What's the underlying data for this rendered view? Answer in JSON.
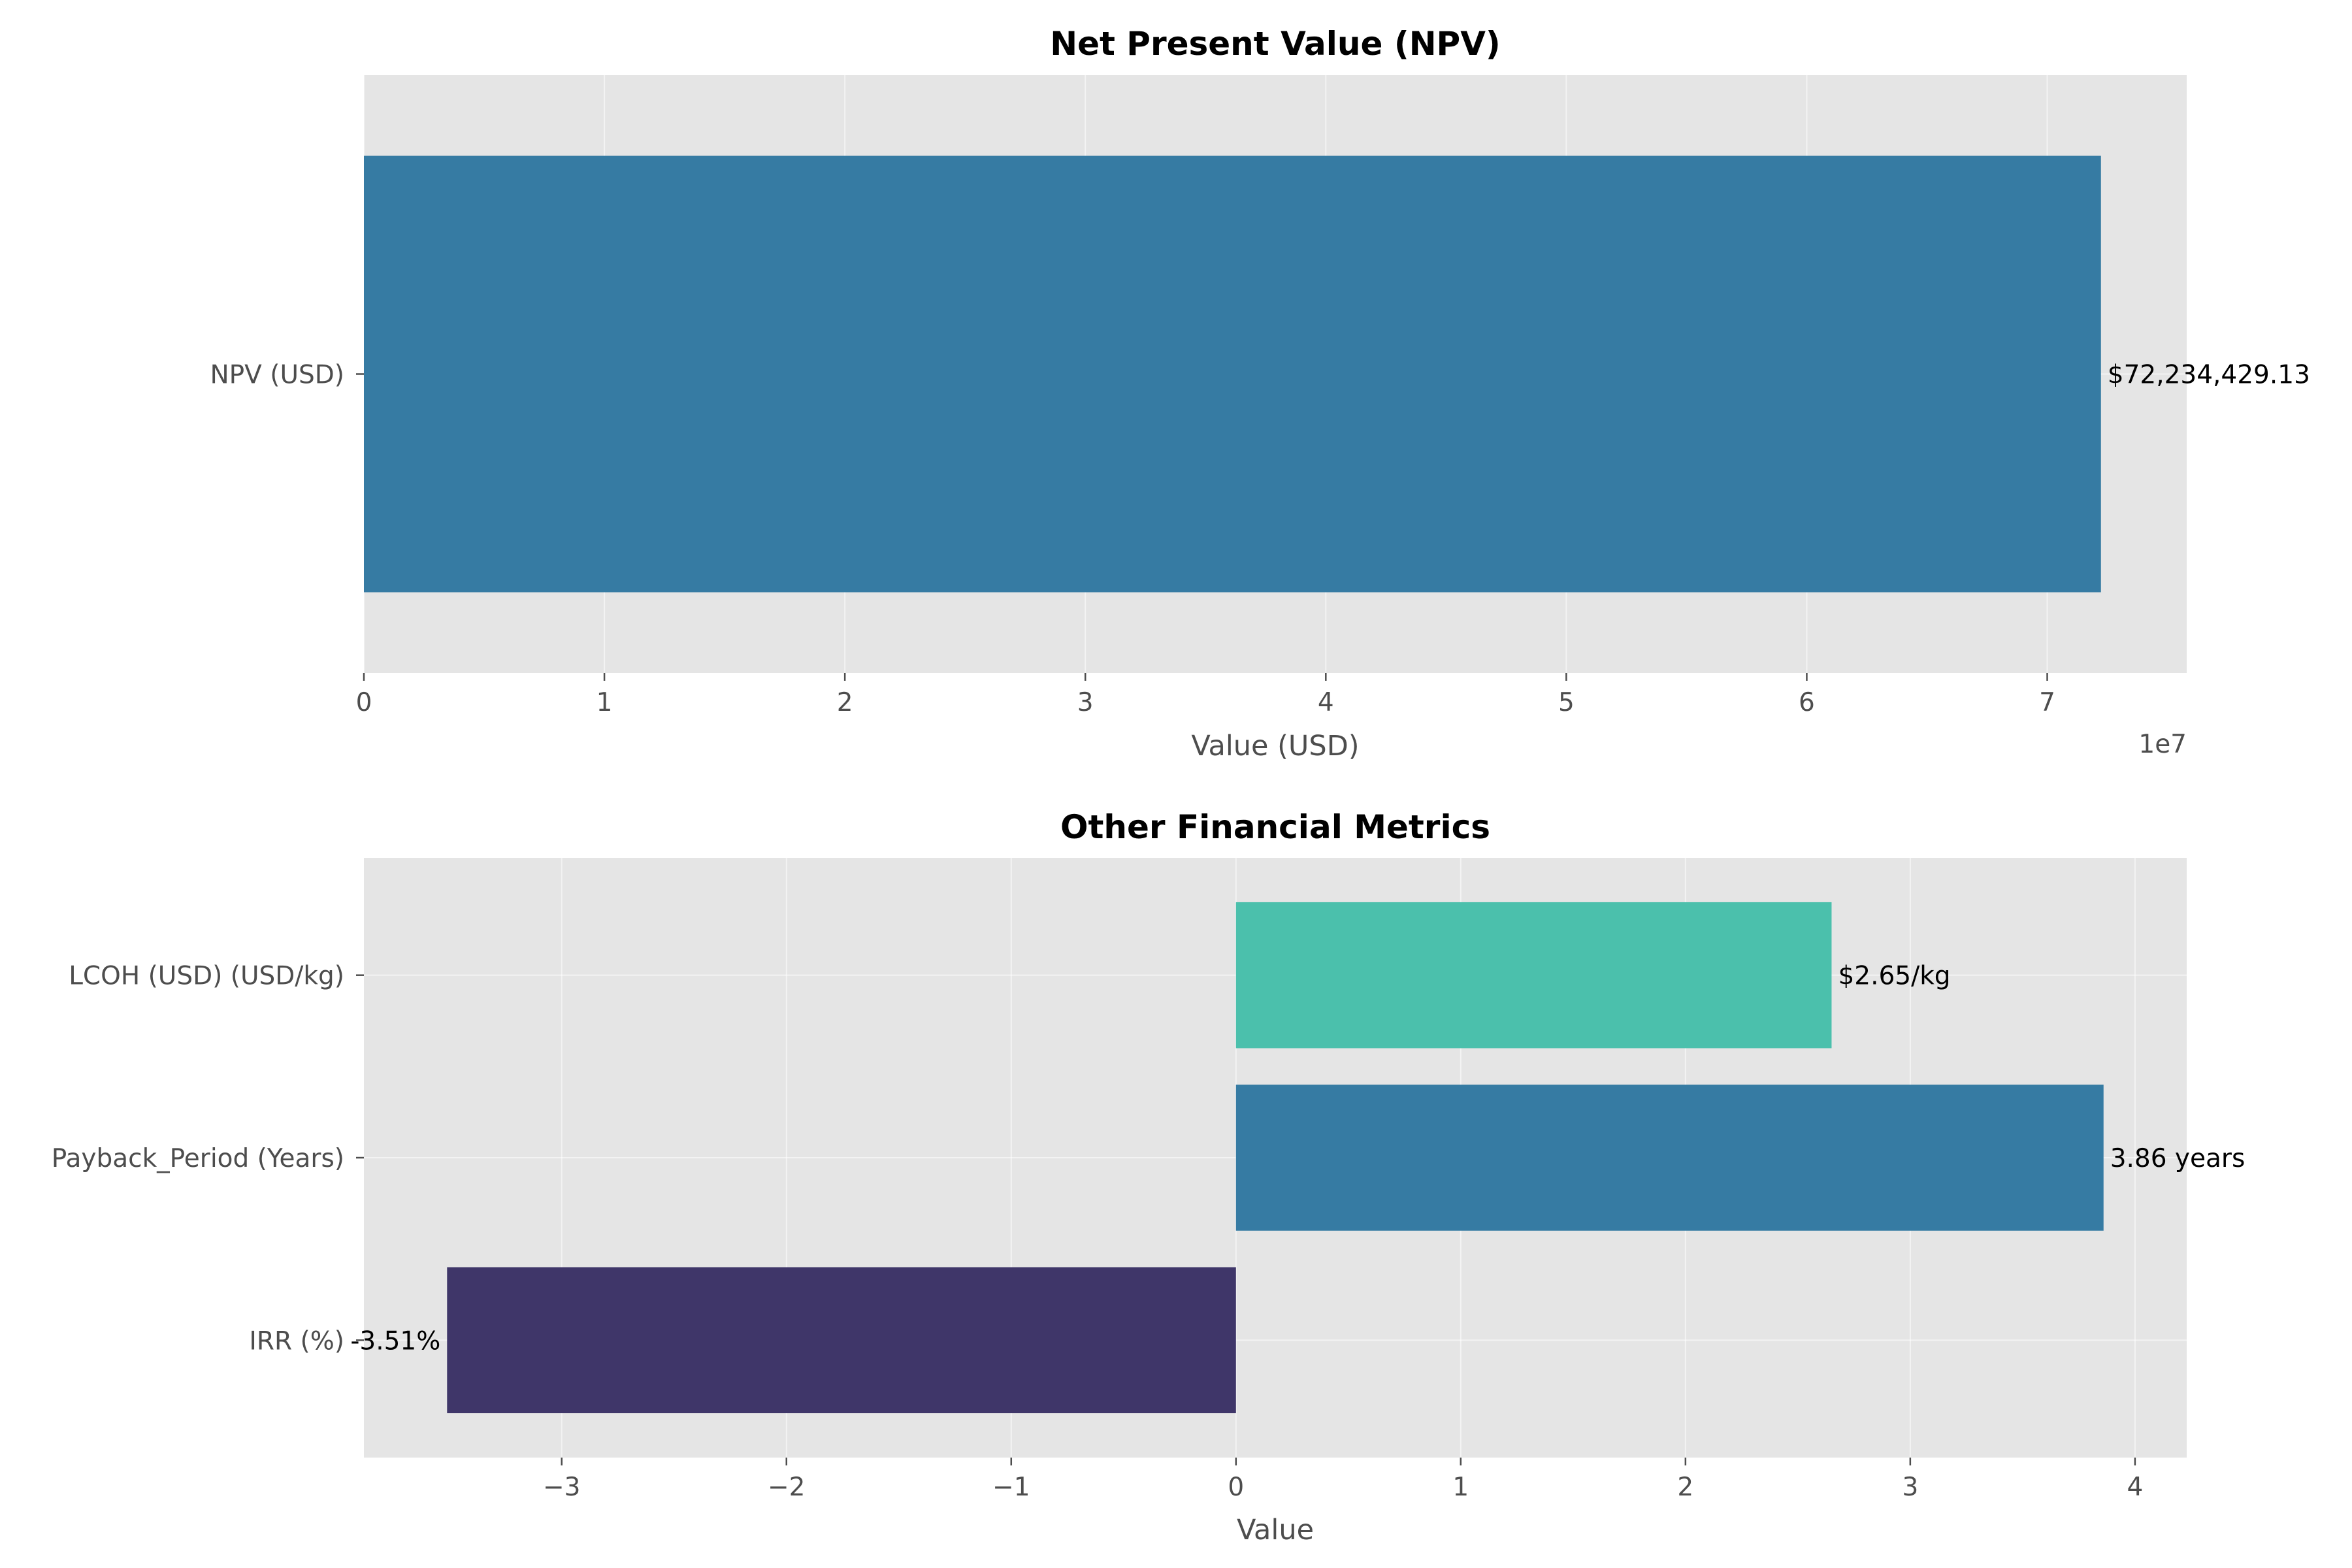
{
  "chart_data": [
    {
      "type": "bar",
      "orientation": "horizontal",
      "title": "Net Present Value (NPV)",
      "xlabel": "Value (USD)",
      "ylabel": "",
      "offset_label": "1e7",
      "categories": [
        "NPV (USD)"
      ],
      "values": [
        72234429.13
      ],
      "value_labels": [
        "$72,234,429.13"
      ],
      "colors": [
        "#367ba3"
      ],
      "xlim": [
        0,
        75800000
      ],
      "xticks": [
        0,
        10000000,
        20000000,
        30000000,
        40000000,
        50000000,
        60000000,
        70000000
      ],
      "xtick_labels": [
        "0",
        "1",
        "2",
        "3",
        "4",
        "5",
        "6",
        "7"
      ],
      "grid": true,
      "background": "#e5e5e5"
    },
    {
      "type": "bar",
      "orientation": "horizontal",
      "title": "Other Financial Metrics",
      "xlabel": "Value",
      "ylabel": "",
      "categories": [
        "IRR (%)",
        "Payback_Period (Years)",
        "LCOH (USD) (USD/kg)"
      ],
      "values": [
        -3.51,
        3.86,
        2.65
      ],
      "value_labels": [
        "-3.51%",
        "3.86 years",
        "$2.65/kg"
      ],
      "colors": [
        "#3f3669",
        "#367ba3",
        "#4bc0ac"
      ],
      "xlim": [
        -3.88,
        4.23
      ],
      "xticks": [
        -3,
        -2,
        -1,
        0,
        1,
        2,
        3,
        4
      ],
      "xtick_labels": [
        "−3",
        "−2",
        "−1",
        "0",
        "1",
        "2",
        "3",
        "4"
      ],
      "grid": true,
      "background": "#e5e5e5"
    }
  ]
}
